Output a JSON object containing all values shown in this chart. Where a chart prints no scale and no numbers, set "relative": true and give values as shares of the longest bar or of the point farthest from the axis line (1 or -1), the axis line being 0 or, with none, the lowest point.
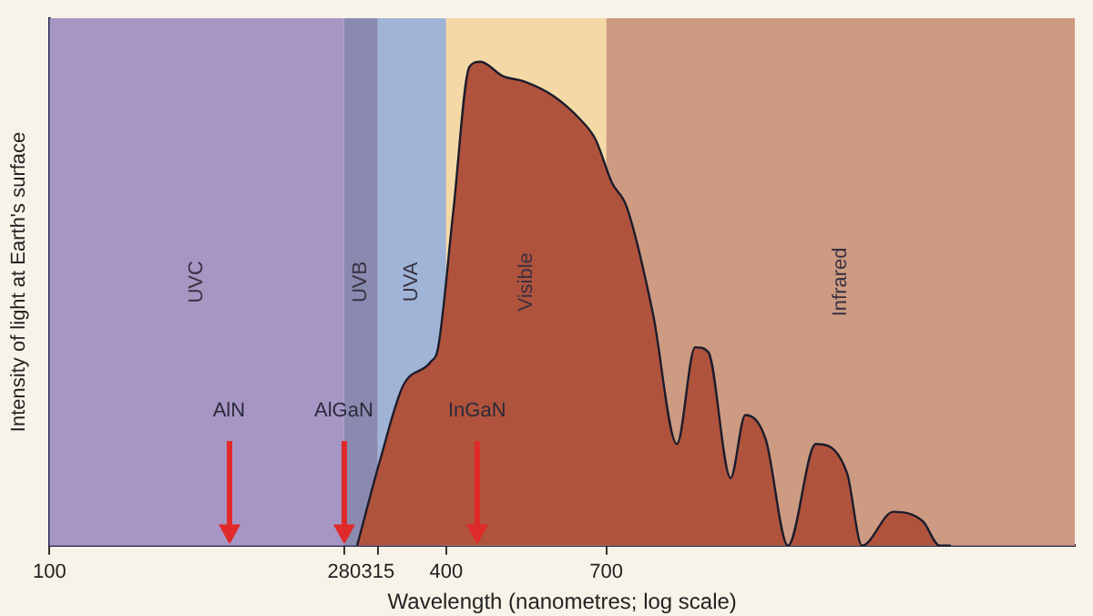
{
  "chart_data": {
    "type": "area",
    "relative": true,
    "xlabel": "Wavelength (nanometres; log scale)",
    "ylabel": "Intensity of light at Earth's surface",
    "log": "x",
    "xlim": [
      100,
      3600
    ],
    "xticks": [
      100,
      280,
      315,
      400,
      700
    ],
    "x": [
      293,
      318,
      344,
      379,
      389,
      410,
      434,
      451,
      488,
      524,
      581,
      640,
      674,
      714,
      752,
      824,
      896,
      955,
      1000,
      1081,
      1138,
      1222,
      1321,
      1456,
      1624,
      1711,
      1910,
      2118,
      2244,
      2333
    ],
    "series": [
      {
        "color": "#b0533c",
        "values": [
          0,
          0.18,
          0.33,
          0.38,
          0.41,
          0.69,
          0.99,
          1,
          0.97,
          0.96,
          0.93,
          0.88,
          0.84,
          0.75,
          0.7,
          0.48,
          0.21,
          0.41,
          0.4,
          0.14,
          0.27,
          0.22,
          0,
          0.21,
          0.15,
          0,
          0.07,
          0.05,
          0,
          0
        ]
      }
    ],
    "bands": [
      {
        "axis": "x",
        "from": 100,
        "to": 280,
        "label": "UVC",
        "color": "#a796c4"
      },
      {
        "axis": "x",
        "from": 280,
        "to": 315,
        "label": "UVB",
        "color": "#8a8ab0"
      },
      {
        "axis": "x",
        "from": 315,
        "to": 400,
        "label": "UVA",
        "color": "#9fb4d6"
      },
      {
        "axis": "x",
        "from": 400,
        "to": 700,
        "label": "Visible",
        "color": "#f4d9a6"
      },
      {
        "axis": "x",
        "from": 700,
        "to": 3600,
        "label": "Infrared",
        "color": "#cd9b82"
      }
    ],
    "annotations": [
      "AlN",
      "AlGaN",
      "InGaN"
    ]
  }
}
